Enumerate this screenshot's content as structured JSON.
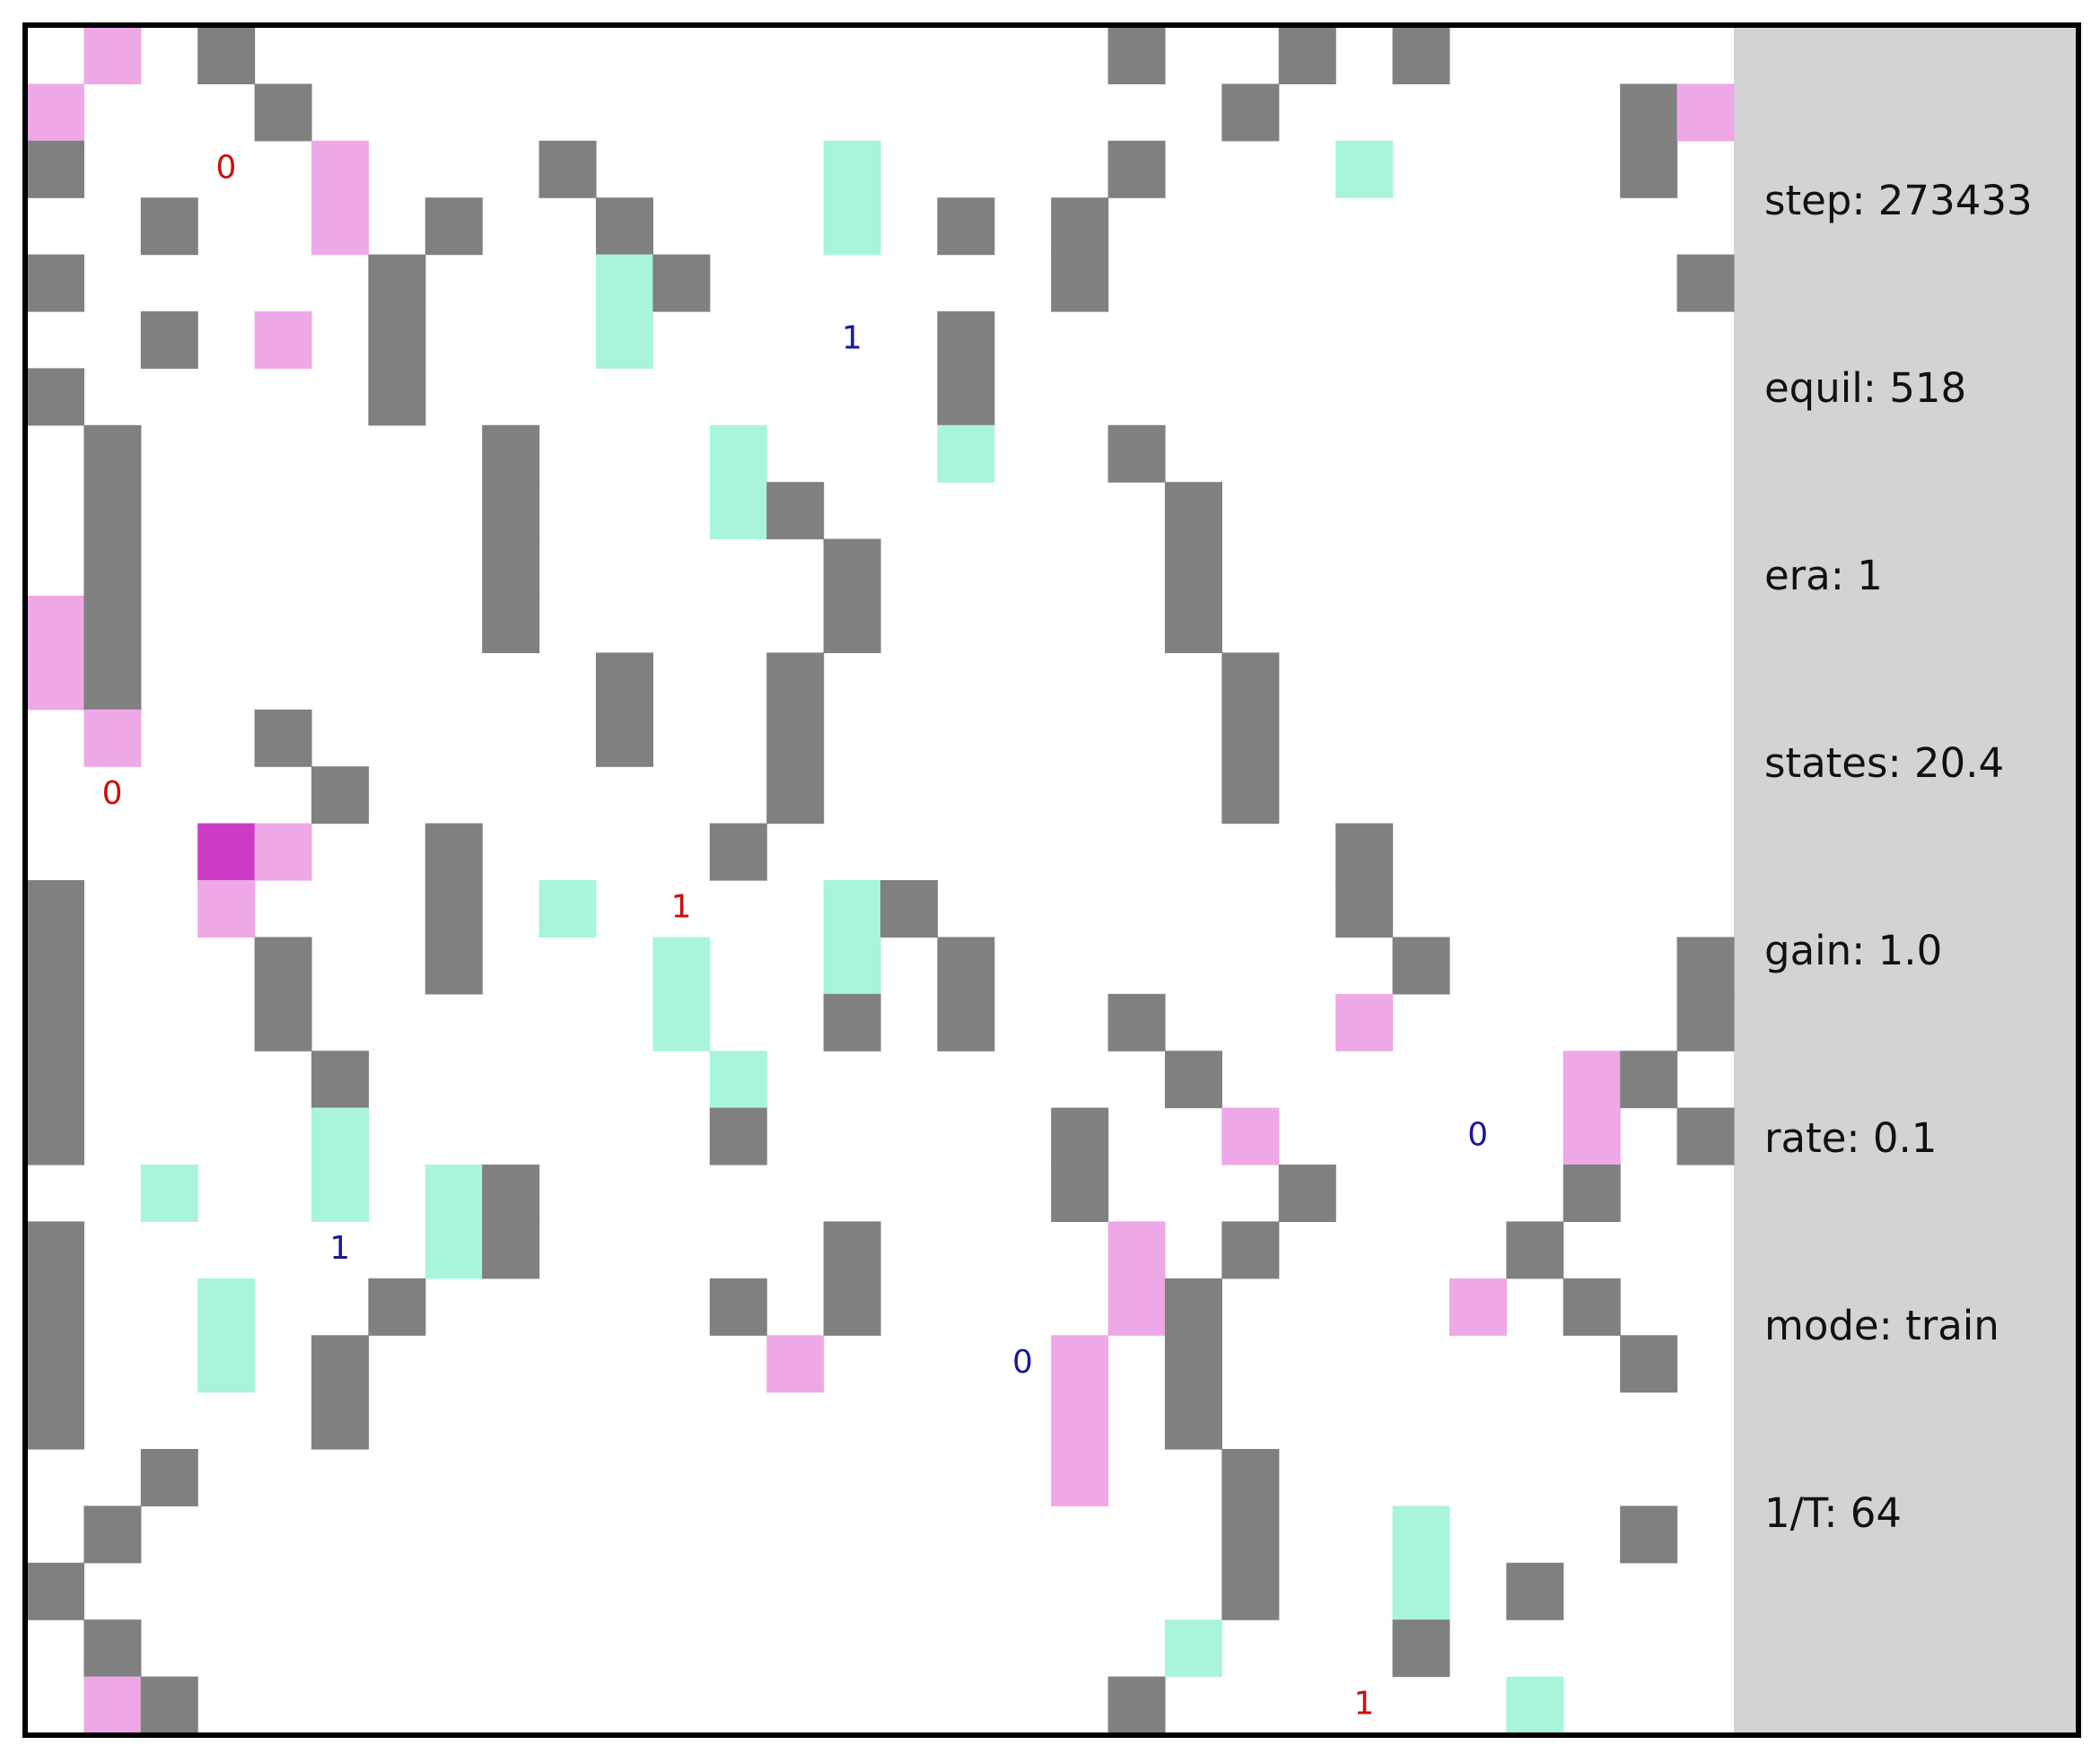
{
  "grid_labels": [
    {
      "text": "0",
      "color": "#cc1010"
    },
    {
      "text": "1",
      "color": "#1a1a99"
    },
    {
      "text": "0",
      "color": "#cc1010"
    },
    {
      "text": "1",
      "color": "#cc1010"
    },
    {
      "text": "0",
      "color": "#1a1a99"
    },
    {
      "text": "1",
      "color": "#1a1a99"
    },
    {
      "text": "0",
      "color": "#1a1a99"
    },
    {
      "text": "1",
      "color": "#cc1010"
    }
  ],
  "stats": [
    "step: 273433",
    "equil: 518",
    "era: 1",
    "states: 20.4",
    "gain: 1.0",
    "rate: 0.1",
    "mode: train",
    "1/T: 64"
  ]
}
